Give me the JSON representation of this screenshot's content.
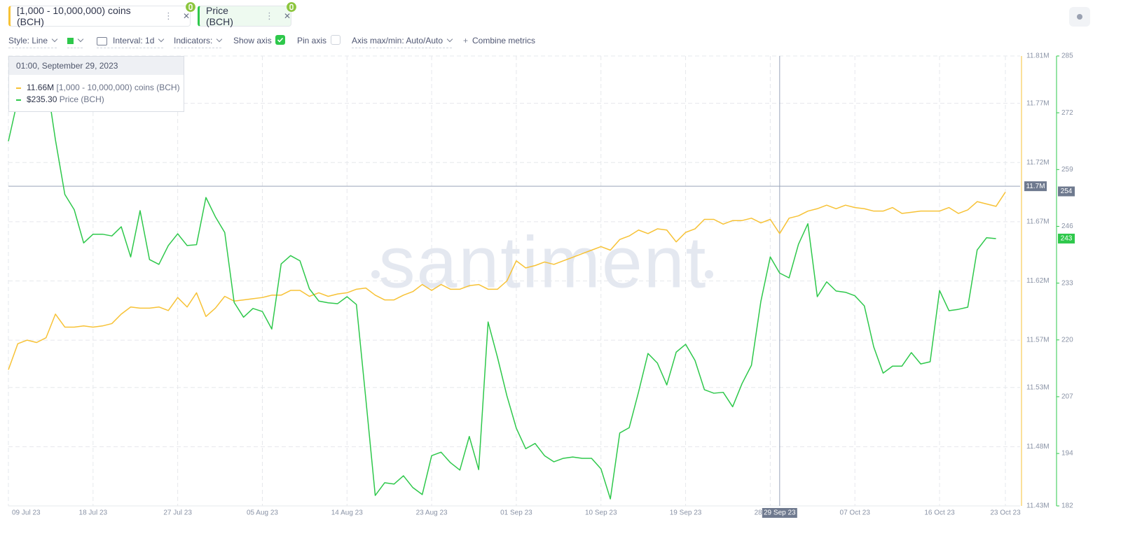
{
  "tabs": [
    "[1,000 - 10,000,000) coins (BCH)",
    "Price (BCH)"
  ],
  "toolbar": {
    "style": "Style: Line",
    "interval": "Interval: 1d",
    "indicators": "Indicators:",
    "show_axis": "Show axis",
    "pin_axis": "Pin axis",
    "axis_minmax": "Axis max/min: Auto/Auto",
    "combine": "Combine metrics"
  },
  "chart_data": {
    "type": "line",
    "watermark": "santiment",
    "x": [
      "2023-07-09",
      "2023-07-10",
      "2023-07-11",
      "2023-07-12",
      "2023-07-13",
      "2023-07-14",
      "2023-07-15",
      "2023-07-16",
      "2023-07-17",
      "2023-07-18",
      "2023-07-19",
      "2023-07-20",
      "2023-07-21",
      "2023-07-22",
      "2023-07-23",
      "2023-07-24",
      "2023-07-25",
      "2023-07-26",
      "2023-07-27",
      "2023-07-28",
      "2023-07-29",
      "2023-07-30",
      "2023-07-31",
      "2023-08-01",
      "2023-08-02",
      "2023-08-03",
      "2023-08-04",
      "2023-08-05",
      "2023-08-06",
      "2023-08-07",
      "2023-08-08",
      "2023-08-09",
      "2023-08-10",
      "2023-08-11",
      "2023-08-12",
      "2023-08-13",
      "2023-08-14",
      "2023-08-15",
      "2023-08-16",
      "2023-08-17",
      "2023-08-18",
      "2023-08-19",
      "2023-08-20",
      "2023-08-21",
      "2023-08-22",
      "2023-08-23",
      "2023-08-24",
      "2023-08-25",
      "2023-08-26",
      "2023-08-27",
      "2023-08-28",
      "2023-08-29",
      "2023-08-30",
      "2023-08-31",
      "2023-09-01",
      "2023-09-02",
      "2023-09-03",
      "2023-09-04",
      "2023-09-05",
      "2023-09-06",
      "2023-09-07",
      "2023-09-08",
      "2023-09-09",
      "2023-09-10",
      "2023-09-11",
      "2023-09-12",
      "2023-09-13",
      "2023-09-14",
      "2023-09-15",
      "2023-09-16",
      "2023-09-17",
      "2023-09-18",
      "2023-09-19",
      "2023-09-20",
      "2023-09-21",
      "2023-09-22",
      "2023-09-23",
      "2023-09-24",
      "2023-09-25",
      "2023-09-26",
      "2023-09-27",
      "2023-09-28",
      "2023-09-29",
      "2023-09-30",
      "2023-10-01",
      "2023-10-02",
      "2023-10-03",
      "2023-10-04",
      "2023-10-05",
      "2023-10-06",
      "2023-10-07",
      "2023-10-08",
      "2023-10-09",
      "2023-10-10",
      "2023-10-11",
      "2023-10-12",
      "2023-10-13",
      "2023-10-14",
      "2023-10-15",
      "2023-10-16",
      "2023-10-17",
      "2023-10-18",
      "2023-10-19",
      "2023-10-20",
      "2023-10-21",
      "2023-10-22",
      "2023-10-23"
    ],
    "series": [
      {
        "name": "[1,000 - 10,000,000) coins (BCH)",
        "color": "#f7c236",
        "axis": "y",
        "values": [
          11545000,
          11567000,
          11570000,
          11568000,
          11572000,
          11592000,
          11581000,
          11581000,
          11582000,
          11581000,
          11582000,
          11584000,
          11592000,
          11598000,
          11597000,
          11597000,
          11598000,
          11595000,
          11606000,
          11598000,
          11610000,
          11590000,
          11597000,
          11607000,
          11603000,
          11604000,
          11605000,
          11606000,
          11608000,
          11608000,
          11612000,
          11612000,
          11607000,
          11610000,
          11607000,
          11609000,
          11610000,
          11613000,
          11614000,
          11608000,
          11604000,
          11604000,
          11608000,
          11611000,
          11617000,
          11612000,
          11617000,
          11613000,
          11613000,
          11616000,
          11617000,
          11613000,
          11613000,
          11620000,
          11637000,
          11631000,
          11633000,
          11636000,
          11634000,
          11637000,
          11640000,
          11643000,
          11646000,
          11649000,
          11646000,
          11655000,
          11658000,
          11663000,
          11660000,
          11664000,
          11663000,
          11653000,
          11661000,
          11664000,
          11672000,
          11672000,
          11668000,
          11671000,
          11671000,
          11673000,
          11669000,
          11672000,
          11660000,
          11673000,
          11675000,
          11679000,
          11681000,
          11684000,
          11681000,
          11684000,
          11682000,
          11681000,
          11679000,
          11679000,
          11682000,
          11677000,
          11678000,
          11679000,
          11679000,
          11679000,
          11682000,
          11677000,
          11680000,
          11687000,
          11685000,
          11683000,
          11695000
        ]
      },
      {
        "name": "Price (BCH)",
        "color": "#2ec84b",
        "axis": "y2",
        "last_value_label": "243",
        "values": [
          265.5,
          275.1,
          282.6,
          284.2,
          280.2,
          265.8,
          253.3,
          249.8,
          242.2,
          244.2,
          244.2,
          243.8,
          245.9,
          239.0,
          249.6,
          238.4,
          237.3,
          241.6,
          244.3,
          241.6,
          241.8,
          252.6,
          248.2,
          244.6,
          228.6,
          225.2,
          227.2,
          226.5,
          222.5,
          237.4,
          239.3,
          238.1,
          231.7,
          228.9,
          228.5,
          228.3,
          229.9,
          228.1,
          206.5,
          184.4,
          187.3,
          187.0,
          188.9,
          186.2,
          184.6,
          193.5,
          194.3,
          191.9,
          190.2,
          197.9,
          190.3,
          224.1,
          216.0,
          207.2,
          199.8,
          195.1,
          196.3,
          193.5,
          192.1,
          192.9,
          193.2,
          192.9,
          192.9,
          190.5,
          183.6,
          198.7,
          199.9,
          208.1,
          216.9,
          214.7,
          209.7,
          217.2,
          219.0,
          215.3,
          208.6,
          207.8,
          208.0,
          204.7,
          210.0,
          214.2,
          228.8,
          239.0,
          235.3,
          234.2,
          241.9,
          246.6,
          229.9,
          233.3,
          231.2,
          230.9,
          230.1,
          227.8,
          218.4,
          212.4,
          214.0,
          214.0,
          217.1,
          214.5,
          215.0,
          231.3,
          226.7,
          227.0,
          227.5,
          240.6,
          243.4,
          243.2,
          null
        ]
      }
    ],
    "ylim": [
      11430000,
      11810000
    ],
    "yticks": [
      {
        "value": 11810000,
        "label": "11.81M"
      },
      {
        "value": 11770000,
        "label": "11.77M"
      },
      {
        "value": 11720000,
        "label": "11.72M"
      },
      {
        "value": 11670000,
        "label": "11.67M"
      },
      {
        "value": 11620000,
        "label": "11.62M"
      },
      {
        "value": 11570000,
        "label": "11.57M"
      },
      {
        "value": 11530000,
        "label": "11.53M"
      },
      {
        "value": 11480000,
        "label": "11.48M"
      },
      {
        "value": 11430000,
        "label": "11.43M"
      }
    ],
    "y2lim": [
      182,
      285
    ],
    "y2ticks": [
      285,
      272,
      259,
      246,
      233,
      220,
      207,
      194,
      182
    ],
    "xticks": [
      {
        "value": "2023-07-09",
        "label": "09 Jul 23"
      },
      {
        "value": "2023-07-18",
        "label": "18 Jul 23"
      },
      {
        "value": "2023-07-27",
        "label": "27 Jul 23"
      },
      {
        "value": "2023-08-05",
        "label": "05 Aug 23"
      },
      {
        "value": "2023-08-14",
        "label": "14 Aug 23"
      },
      {
        "value": "2023-08-23",
        "label": "23 Aug 23"
      },
      {
        "value": "2023-09-01",
        "label": "01 Sep 23"
      },
      {
        "value": "2023-09-10",
        "label": "10 Sep 23"
      },
      {
        "value": "2023-09-19",
        "label": "19 Sep 23"
      },
      {
        "value": "2023-09-28",
        "label": "28 Sep 23"
      },
      {
        "value": "2023-10-07",
        "label": "07 Oct 23"
      },
      {
        "value": "2023-10-16",
        "label": "16 Oct 23"
      },
      {
        "value": "2023-10-23",
        "label": "23 Oct 23"
      }
    ],
    "grid": true,
    "crosshair": {
      "x": {
        "value": "2023-09-29",
        "label": "29 Sep 23"
      },
      "y": {
        "value": 11700000,
        "label": "11.7M"
      },
      "y2": {
        "value": 254,
        "label": "254"
      }
    },
    "tooltip": {
      "date": "01:00, September 29, 2023",
      "values": [
        11660000,
        235.3
      ],
      "value_labels": [
        "11.66M",
        "$235.30"
      ]
    }
  }
}
